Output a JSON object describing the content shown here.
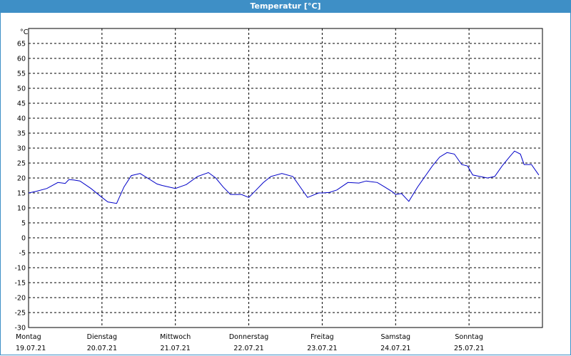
{
  "window": {
    "title": "Temperatur [°C]"
  },
  "colors": {
    "title_bar": "#3e8fc6",
    "series": "#0000c8",
    "grid": "#000000"
  },
  "chart_data": {
    "type": "line",
    "title": "Temperatur [°C]",
    "ylabel": "°C",
    "xlabel": "",
    "ylim": [
      -30,
      70
    ],
    "yticks": [
      65,
      60,
      55,
      50,
      45,
      40,
      35,
      30,
      25,
      20,
      15,
      10,
      5,
      0,
      -5,
      -10,
      -15,
      -20,
      -25,
      -30
    ],
    "xlim": [
      0,
      7
    ],
    "x_unit": "days",
    "day_labels": [
      {
        "day": "Montag",
        "date": "19.07.21"
      },
      {
        "day": "Dienstag",
        "date": "20.07.21"
      },
      {
        "day": "Mittwoch",
        "date": "21.07.21"
      },
      {
        "day": "Donnerstag",
        "date": "22.07.21"
      },
      {
        "day": "Freitag",
        "date": "23.07.21"
      },
      {
        "day": "Samstag",
        "date": "24.07.21"
      },
      {
        "day": "Sonntag",
        "date": "25.07.21"
      }
    ],
    "grid": true,
    "series": [
      {
        "x": [
          0,
          0.1,
          0.25,
          0.4,
          0.5,
          0.55,
          0.62,
          0.7,
          0.85,
          1.0,
          1.08,
          1.2,
          1.3,
          1.4,
          1.52,
          1.62,
          1.75,
          1.82,
          2.0,
          2.15,
          2.3,
          2.45,
          2.55,
          2.65,
          2.75,
          2.9,
          3.0,
          3.1,
          3.2,
          3.3,
          3.45,
          3.6,
          3.7,
          3.8,
          3.95,
          4.0,
          4.1,
          4.2,
          4.35,
          4.5,
          4.6,
          4.65,
          4.75,
          4.85,
          4.95,
          5.0,
          5.08,
          5.18,
          5.3,
          5.4,
          5.5,
          5.6,
          5.7,
          5.8,
          5.9,
          5.98,
          6.05,
          6.15,
          6.25,
          6.35,
          6.45,
          6.55,
          6.62,
          6.7,
          6.75,
          6.8,
          6.85,
          6.95
        ],
        "values": [
          15,
          15.5,
          16.5,
          18.5,
          18.2,
          19.5,
          19.3,
          19,
          16.5,
          13.5,
          12,
          11.5,
          17,
          20.8,
          21.5,
          20,
          18,
          17.5,
          16.5,
          17.8,
          20.5,
          21.8,
          20,
          17,
          14.5,
          14.5,
          13.5,
          16,
          18.5,
          20.5,
          21.5,
          20.5,
          17,
          13.5,
          15,
          15,
          15.2,
          16,
          18.5,
          18.3,
          19,
          18.8,
          18.5,
          17,
          15.5,
          14.5,
          14.8,
          12.2,
          17,
          20.5,
          24,
          27,
          28.5,
          28,
          24.5,
          24,
          21,
          20.5,
          20,
          20.5,
          24,
          27,
          29,
          28,
          24.5,
          24.5,
          24.5,
          21
        ]
      }
    ]
  }
}
